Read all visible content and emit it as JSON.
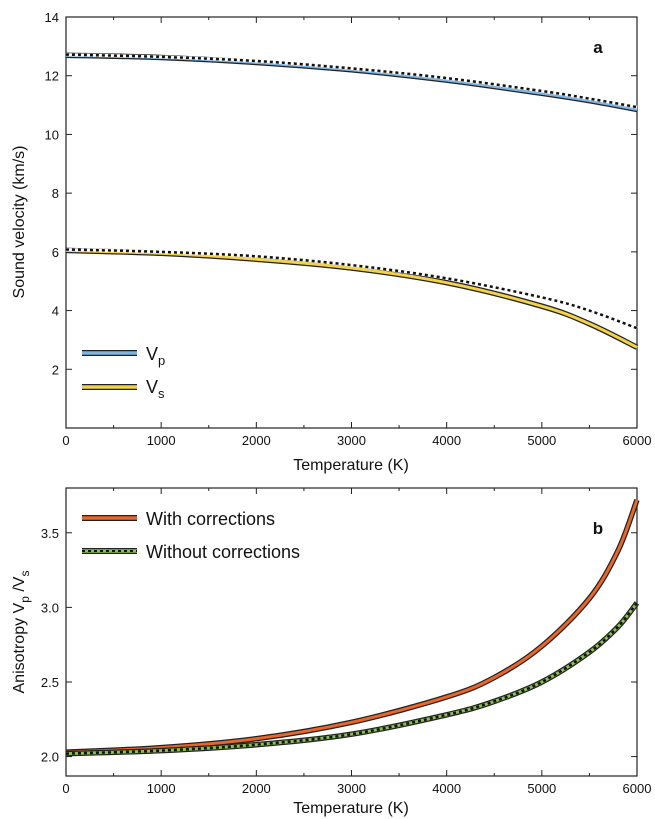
{
  "chart_data": [
    {
      "panel_label": "a",
      "type": "line",
      "xlabel": "Temperature (K)",
      "ylabel": "Sound velocity (km/s)",
      "xlim": [
        0,
        6000
      ],
      "ylim": [
        0,
        14
      ],
      "xticks": [
        0,
        1000,
        2000,
        3000,
        4000,
        5000,
        6000
      ],
      "yticks": [
        2,
        4,
        6,
        8,
        10,
        12,
        14
      ],
      "grid": false,
      "legend_position": "bottom-left",
      "legend": [
        {
          "main": "V",
          "sub": "p",
          "color": "#7fb3e0"
        },
        {
          "main": "V",
          "sub": "s",
          "color": "#f2d24a"
        }
      ],
      "series": [
        {
          "name": "Vp with corrections",
          "color": "#7fb3e0",
          "style": "double",
          "x": [
            0,
            1000,
            2000,
            3000,
            4000,
            5000,
            5500,
            6000
          ],
          "y": [
            12.7,
            12.62,
            12.45,
            12.2,
            11.85,
            11.4,
            11.15,
            10.85
          ]
        },
        {
          "name": "Vp without corrections",
          "color": "#111111",
          "style": "dotted",
          "x": [
            0,
            1000,
            2000,
            3000,
            4000,
            5000,
            5500,
            6000
          ],
          "y": [
            12.72,
            12.64,
            12.5,
            12.25,
            11.92,
            11.48,
            11.22,
            10.93
          ]
        },
        {
          "name": "Vs with corrections",
          "color": "#f2d24a",
          "style": "double",
          "x": [
            0,
            1000,
            2000,
            3000,
            4000,
            5000,
            5500,
            6000
          ],
          "y": [
            6.05,
            5.95,
            5.75,
            5.45,
            4.95,
            4.15,
            3.55,
            2.75
          ]
        },
        {
          "name": "Vs without corrections",
          "color": "#111111",
          "style": "dotted",
          "x": [
            0,
            1000,
            2000,
            3000,
            4000,
            5000,
            5500,
            6000
          ],
          "y": [
            6.08,
            6.0,
            5.85,
            5.55,
            5.1,
            4.45,
            4.0,
            3.4
          ]
        }
      ]
    },
    {
      "panel_label": "b",
      "type": "line",
      "xlabel": "Temperature (K)",
      "ylabel_main": "Anisotropy V",
      "ylabel_sub1": "p",
      "ylabel_mid": " /V",
      "ylabel_sub2": "s",
      "xlim": [
        0,
        6000
      ],
      "ylim": [
        1.87,
        3.8
      ],
      "xticks": [
        0,
        1000,
        2000,
        3000,
        4000,
        5000,
        6000
      ],
      "yticks": [
        2.0,
        2.5,
        3.0,
        3.5
      ],
      "grid": false,
      "legend_position": "top-left",
      "legend": [
        {
          "label": "With corrections",
          "color": "#e8652c",
          "style": "double"
        },
        {
          "label": "Without corrections",
          "color": "#8cc152",
          "style": "dotted"
        }
      ],
      "series": [
        {
          "name": "With corrections",
          "color": "#e8652c",
          "style": "double",
          "x": [
            0,
            1000,
            2000,
            3000,
            4000,
            4500,
            5000,
            5500,
            5800,
            6000
          ],
          "y": [
            2.03,
            2.06,
            2.12,
            2.23,
            2.4,
            2.53,
            2.74,
            3.06,
            3.38,
            3.72
          ]
        },
        {
          "name": "Without corrections",
          "color": "#8cc152",
          "style": "dotted",
          "x": [
            0,
            1000,
            2000,
            3000,
            4000,
            4500,
            5000,
            5500,
            5800,
            6000
          ],
          "y": [
            2.02,
            2.04,
            2.08,
            2.15,
            2.28,
            2.37,
            2.5,
            2.7,
            2.87,
            3.03
          ]
        }
      ]
    }
  ]
}
